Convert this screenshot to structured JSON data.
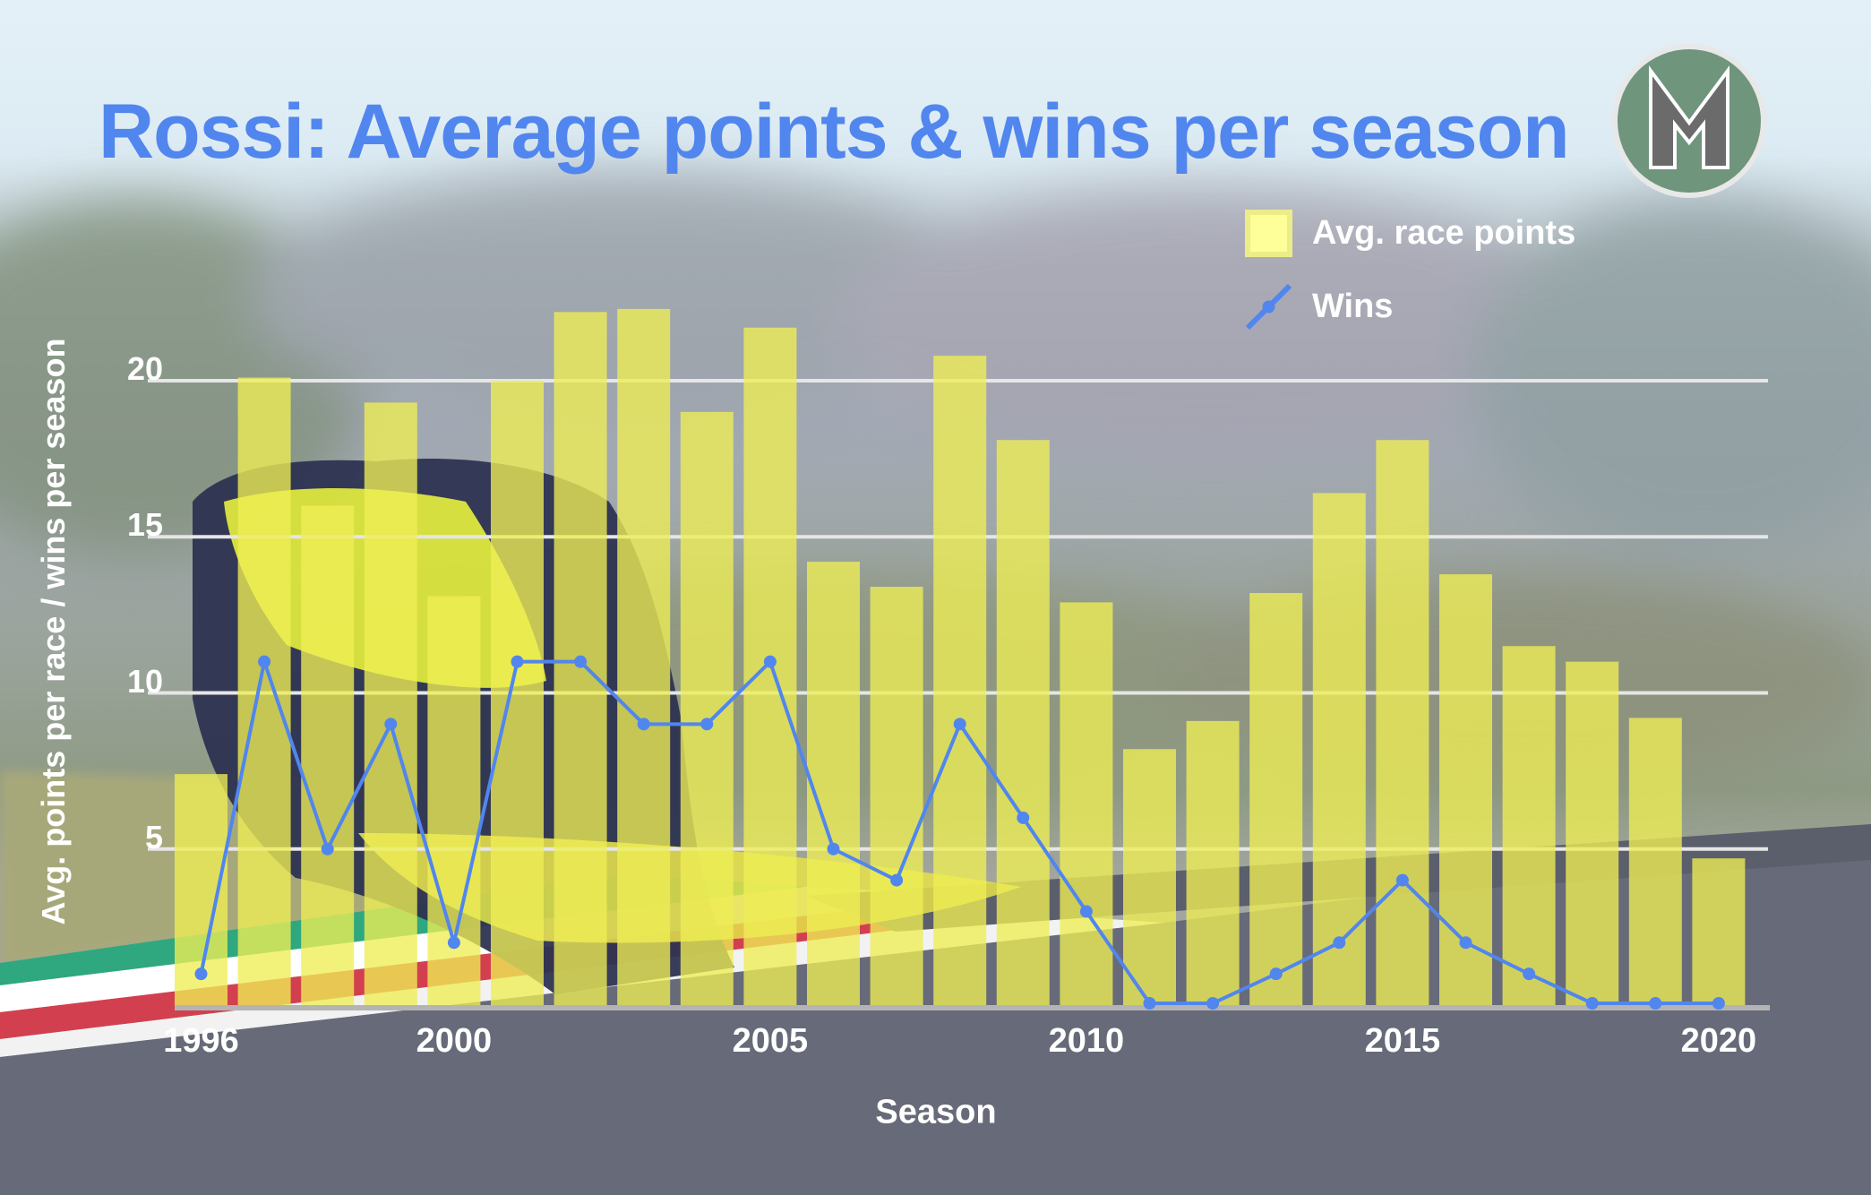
{
  "title": "Rossi: Average points & wins per season",
  "logo": {
    "letter": "M",
    "bg_color": "#6f957c",
    "ring_color": "#e8e8e8",
    "letter_color": "#6b6b6b"
  },
  "legend": {
    "items": [
      {
        "label": "Avg. race points",
        "type": "bar",
        "color": "#ffff99"
      },
      {
        "label": "Wins",
        "type": "line",
        "color": "#5186ee"
      }
    ]
  },
  "axes": {
    "ylabel": "Avg. points per race / wins per season",
    "xlabel": "Season",
    "yticks": [
      "5",
      "10",
      "15",
      "20"
    ],
    "xticks": [
      "1996",
      "2000",
      "2005",
      "2010",
      "2015",
      "2020"
    ]
  },
  "colors": {
    "bar": "#eeee55",
    "line": "#5186ee",
    "grid": "#e6e6e6",
    "axis": "#b4b4b4",
    "title": "#5186ee",
    "text": "#ffffff"
  },
  "chart_data": {
    "type": "bar+line",
    "title": "Rossi: Average points & wins per season",
    "xlabel": "Season",
    "ylabel": "Avg. points per race / wins per season",
    "categories": [
      1996,
      1997,
      1998,
      1999,
      2000,
      2001,
      2002,
      2003,
      2004,
      2005,
      2006,
      2007,
      2008,
      2009,
      2010,
      2011,
      2012,
      2013,
      2014,
      2015,
      2016,
      2017,
      2018,
      2019,
      2020
    ],
    "series": [
      {
        "name": "Avg. race points",
        "type": "bar",
        "values": [
          7.4,
          20.1,
          16.0,
          19.3,
          13.1,
          20.0,
          22.2,
          22.3,
          19.0,
          21.7,
          14.2,
          13.4,
          20.8,
          18.1,
          12.9,
          8.2,
          9.1,
          13.2,
          16.4,
          18.1,
          13.8,
          11.5,
          11.0,
          9.2,
          4.7
        ]
      },
      {
        "name": "Wins",
        "type": "line",
        "values": [
          1,
          11,
          5,
          9,
          2,
          11,
          11,
          9,
          9,
          11,
          5,
          4,
          9,
          6,
          3,
          0,
          0,
          1,
          2,
          4,
          2,
          1,
          0,
          0,
          0
        ]
      }
    ],
    "ylim": [
      0,
      23
    ],
    "yticks": [
      5,
      10,
      15,
      20
    ],
    "xticks": [
      1996,
      2000,
      2005,
      2010,
      2015,
      2020
    ],
    "grid": "horizontal",
    "legend_position": "top-right"
  }
}
